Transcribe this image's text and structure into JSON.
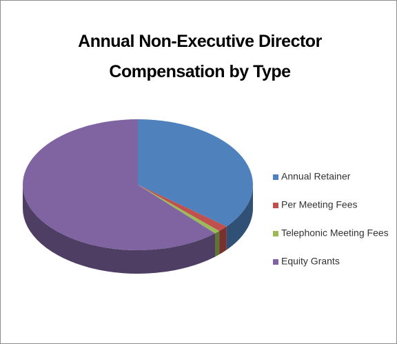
{
  "chart_data": {
    "type": "pie3d",
    "title": "Annual Non-Executive Director Compensation by Type",
    "categories": [
      "Annual Retainer",
      "Per Meeting Fees",
      "Telephonic Meeting Fees",
      "Equity Grants"
    ],
    "values": [
      36,
      1.5,
      0.8,
      61.7
    ],
    "colors": [
      "#4f81bd",
      "#c0504d",
      "#9bbb59",
      "#8064a2"
    ],
    "legend": "right"
  }
}
